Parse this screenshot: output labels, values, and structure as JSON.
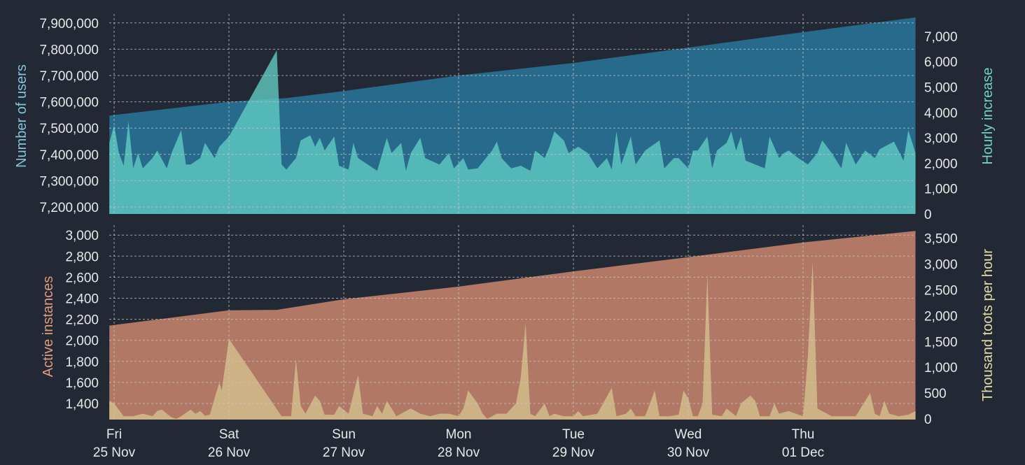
{
  "chart_data": [
    {
      "type": "area",
      "title": "",
      "x_unit": "hours since Fri 25 Nov 00:00",
      "ylabel": "Number of users",
      "ylabel_right": "Hourly increase",
      "ylim": [
        7170000,
        7930000
      ],
      "ylim_right": [
        0,
        7800
      ],
      "yticks": [
        "7,200,000",
        "7,300,000",
        "7,400,000",
        "7,500,000",
        "7,600,000",
        "7,700,000",
        "7,800,000",
        "7,900,000"
      ],
      "yticks_values": [
        7200000,
        7300000,
        7400000,
        7500000,
        7600000,
        7700000,
        7800000,
        7900000
      ],
      "yticks_right": [
        "0",
        "1,000",
        "2,000",
        "3,000",
        "4,000",
        "5,000",
        "6,000",
        "7,000"
      ],
      "yticks_right_values": [
        0,
        1000,
        2000,
        3000,
        4000,
        5000,
        6000,
        7000
      ],
      "grid": true,
      "series": [
        {
          "name": "Number of users",
          "axis": "left",
          "color": "#286a8c",
          "x": [
            -1,
            24,
            34,
            36,
            48,
            72,
            96,
            120,
            144,
            167.5
          ],
          "y": [
            7548000,
            7600000,
            7612000,
            7614000,
            7641000,
            7700000,
            7748000,
            7806000,
            7865000,
            7921000
          ]
        },
        {
          "name": "Hourly increase",
          "axis": "right",
          "color": "#5ec4bd",
          "x": [
            -1,
            0,
            1,
            2,
            3,
            4,
            5,
            6,
            8,
            9,
            11,
            12,
            14,
            15,
            16,
            18,
            19,
            21,
            22,
            24,
            34,
            35,
            36,
            38,
            39,
            41,
            42,
            43,
            44,
            46,
            47,
            49,
            50,
            51,
            53,
            55,
            57,
            58,
            60,
            61,
            62,
            64,
            65,
            68,
            70,
            71,
            73,
            74,
            76,
            79,
            80,
            81,
            83,
            85,
            87,
            88,
            90,
            91,
            92,
            94,
            95,
            97,
            99,
            101,
            103,
            104,
            105,
            106,
            108,
            109,
            111,
            114,
            115,
            117,
            118,
            120,
            121,
            122,
            124,
            125,
            126,
            128,
            129,
            130,
            131,
            132,
            134,
            136,
            137,
            139,
            140,
            141,
            143,
            145,
            147,
            148,
            150,
            152,
            153,
            155,
            157,
            159,
            160,
            163,
            165,
            166,
            167.5
          ],
          "y": [
            2800,
            3500,
            2400,
            1900,
            3650,
            1800,
            2400,
            1800,
            2200,
            2500,
            1800,
            2400,
            3300,
            1950,
            1950,
            2200,
            2800,
            2200,
            2650,
            3050,
            6450,
            1950,
            1750,
            2200,
            2900,
            3100,
            2650,
            3000,
            2500,
            3050,
            1900,
            1750,
            2800,
            2200,
            1950,
            1700,
            3000,
            2400,
            2800,
            1700,
            2400,
            3000,
            2200,
            1950,
            2400,
            1800,
            2200,
            1750,
            1800,
            2500,
            2850,
            2200,
            1800,
            1900,
            1700,
            2500,
            2200,
            2650,
            3250,
            2900,
            2400,
            2650,
            2400,
            1800,
            2200,
            1750,
            3250,
            1950,
            3050,
            1950,
            2500,
            2900,
            1800,
            2200,
            2200,
            1800,
            2500,
            2500,
            3050,
            1800,
            2500,
            2800,
            3250,
            2500,
            3050,
            2100,
            1950,
            1800,
            3050,
            2200,
            2400,
            2500,
            2200,
            1950,
            2400,
            2900,
            2400,
            1800,
            2800,
            1950,
            2500,
            2200,
            2550,
            2850,
            2100,
            3300,
            2400
          ]
        }
      ]
    },
    {
      "type": "area",
      "title": "",
      "x_unit": "hours since Fri 25 Nov 00:00",
      "ylabel": "Active instances",
      "ylabel_right": "Thousand toots per hour",
      "ylim": [
        1240,
        3090
      ],
      "ylim_right": [
        0,
        3700
      ],
      "yticks": [
        "1,400",
        "1,600",
        "1,800",
        "2,000",
        "2,200",
        "2,400",
        "2,600",
        "2,800",
        "3,000"
      ],
      "yticks_values": [
        1400,
        1600,
        1800,
        2000,
        2200,
        2400,
        2600,
        2800,
        3000
      ],
      "yticks_right": [
        "0",
        "500",
        "1,000",
        "1,500",
        "2,000",
        "2,500",
        "3,000",
        "3,500"
      ],
      "yticks_right_values": [
        0,
        500,
        1000,
        1500,
        2000,
        2500,
        3000,
        3500
      ],
      "grid": true,
      "series": [
        {
          "name": "Active instances",
          "axis": "left",
          "color": "#b07865",
          "x": [
            -1,
            24,
            34,
            48,
            72,
            96,
            120,
            144,
            167.5
          ],
          "y": [
            2140,
            2285,
            2290,
            2390,
            2510,
            2655,
            2790,
            2930,
            3040
          ]
        },
        {
          "name": "Thousand toots per hour",
          "axis": "right",
          "color": "#cdb285",
          "x": [
            -1,
            0,
            2,
            4,
            6,
            8,
            9,
            10,
            11,
            12,
            13,
            14,
            16,
            17,
            18,
            19,
            20,
            21,
            22,
            22.5,
            23,
            24,
            34,
            35,
            37,
            38,
            39,
            40,
            42,
            43,
            44,
            46,
            47,
            49,
            51,
            52,
            54,
            55,
            56,
            57,
            59,
            61,
            62,
            64,
            66,
            68,
            70,
            72,
            73,
            74,
            76,
            77,
            78,
            80,
            82,
            84,
            85,
            86,
            87,
            88,
            90,
            91,
            92,
            94,
            96,
            97,
            98,
            101,
            104,
            105,
            107,
            108,
            109,
            111,
            113,
            114,
            116,
            118,
            119,
            120,
            121,
            122,
            123,
            124,
            125,
            127,
            128,
            130,
            131,
            133,
            134,
            135,
            137,
            138,
            139,
            141,
            144,
            145,
            146,
            147,
            149,
            150,
            152,
            155,
            158,
            159,
            160,
            161,
            162,
            164,
            166,
            167.5
          ],
          "y": [
            350,
            300,
            50,
            50,
            100,
            50,
            150,
            180,
            100,
            30,
            0,
            50,
            180,
            100,
            150,
            60,
            80,
            400,
            700,
            550,
            900,
            1550,
            190,
            50,
            50,
            1150,
            250,
            100,
            450,
            350,
            80,
            80,
            250,
            100,
            850,
            100,
            50,
            250,
            100,
            350,
            50,
            150,
            200,
            100,
            50,
            100,
            100,
            50,
            200,
            550,
            300,
            100,
            0,
            100,
            100,
            300,
            800,
            1850,
            100,
            50,
            300,
            50,
            100,
            50,
            50,
            150,
            50,
            100,
            600,
            50,
            100,
            200,
            50,
            50,
            550,
            50,
            50,
            80,
            550,
            400,
            50,
            50,
            300,
            2800,
            80,
            50,
            200,
            50,
            300,
            450,
            350,
            50,
            50,
            300,
            100,
            150,
            50,
            1200,
            3050,
            200,
            100,
            50,
            50,
            50,
            500,
            100,
            50,
            350,
            100,
            50,
            80,
            150
          ]
        }
      ]
    }
  ],
  "x_axis": {
    "ticks_hours": [
      0,
      24,
      48,
      72,
      96,
      120,
      144
    ],
    "labels": [
      {
        "day": "Fri",
        "date": "25 Nov"
      },
      {
        "day": "Sat",
        "date": "26 Nov"
      },
      {
        "day": "Sun",
        "date": "27 Nov"
      },
      {
        "day": "Mon",
        "date": "28 Nov"
      },
      {
        "day": "Tue",
        "date": "29 Nov"
      },
      {
        "day": "Wed",
        "date": "30 Nov"
      },
      {
        "day": "Thu",
        "date": "01 Dec"
      }
    ]
  },
  "colors": {
    "background": "#222834",
    "users_label": "#86c3dc",
    "hourly_label": "#6fd3c8",
    "instances_label": "#e09c7e",
    "toots_label": "#e3dca4"
  }
}
